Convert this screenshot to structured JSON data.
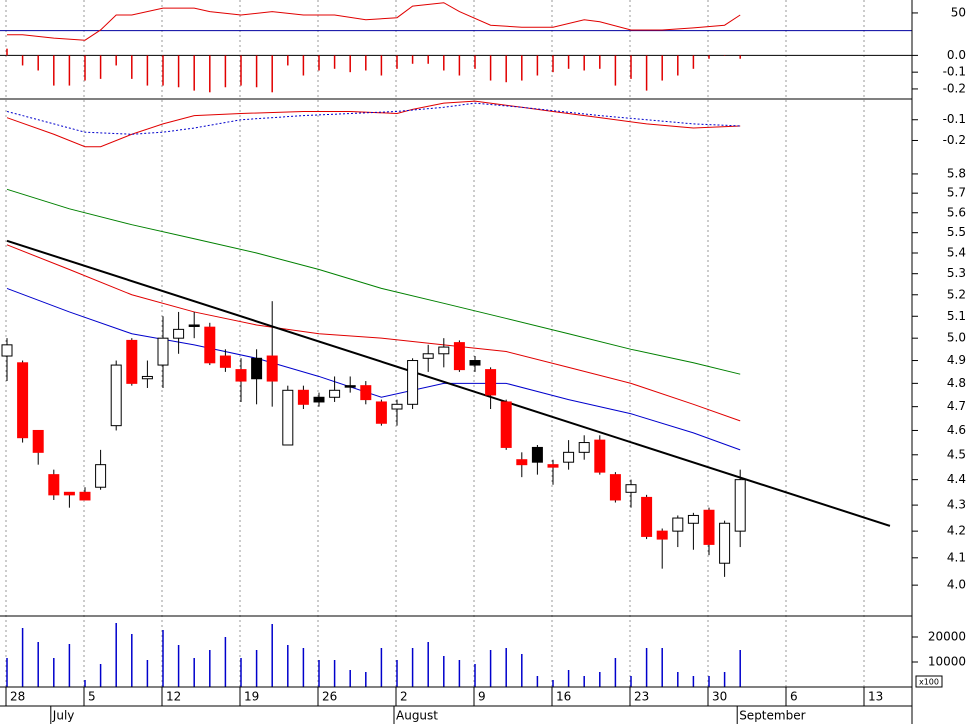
{
  "chart_data": [
    {
      "type": "oscillator",
      "series": [
        {
          "color": "#e00000",
          "x": [
            0,
            1,
            3,
            5,
            6,
            7,
            8,
            10,
            12,
            13,
            15,
            17,
            19,
            21,
            23,
            25,
            26,
            28,
            29,
            31,
            33,
            35,
            37,
            38,
            40,
            42,
            44,
            46,
            47
          ],
          "values": [
            18,
            18,
            13,
            10,
            25,
            47,
            47,
            57,
            57,
            52,
            47,
            52,
            47,
            47,
            40,
            43,
            60,
            65,
            52,
            32,
            29,
            29,
            40,
            37,
            25,
            25,
            28,
            32,
            47
          ]
        }
      ],
      "level": 24,
      "level_color": "#0000a0",
      "ylim": [
        0,
        69
      ],
      "yticks": [
        50
      ]
    },
    {
      "type": "histogram_bars",
      "color": "#e00000",
      "x": [
        0,
        1,
        2,
        3,
        4,
        5,
        6,
        7,
        8,
        9,
        10,
        11,
        12,
        13,
        14,
        15,
        16,
        17,
        18,
        19,
        20,
        21,
        22,
        23,
        24,
        25,
        26,
        27,
        28,
        29,
        30,
        31,
        32,
        33,
        34,
        35,
        36,
        37,
        38,
        39,
        40,
        41,
        42,
        43,
        44,
        45,
        46,
        47
      ],
      "values": [
        0.04,
        -0.06,
        -0.09,
        -0.18,
        -0.18,
        -0.15,
        -0.14,
        -0.06,
        -0.14,
        -0.18,
        -0.18,
        -0.19,
        -0.21,
        -0.22,
        -0.19,
        -0.18,
        -0.19,
        -0.22,
        -0.06,
        -0.12,
        -0.09,
        -0.08,
        -0.1,
        -0.09,
        -0.12,
        -0.08,
        -0.05,
        -0.05,
        -0.09,
        -0.12,
        -0.08,
        -0.15,
        -0.16,
        -0.15,
        -0.12,
        -0.1,
        -0.08,
        -0.09,
        -0.08,
        -0.18,
        -0.14,
        -0.21,
        -0.15,
        -0.12,
        -0.08,
        -0.02,
        0,
        -0.02
      ],
      "ylim": [
        -0.26,
        0.05
      ],
      "yticks": [
        {
          "value": 0,
          "label": "0.0"
        },
        -0.1,
        -0.2
      ]
    },
    {
      "type": "lines",
      "series": [
        {
          "color": "#e00000",
          "dash": false,
          "x": [
            0,
            3,
            5,
            6,
            8,
            10,
            12,
            15,
            19,
            22,
            25,
            26,
            28,
            30,
            33,
            35,
            38,
            41,
            44,
            47
          ],
          "values": [
            -0.09,
            -0.17,
            -0.23,
            -0.23,
            -0.17,
            -0.12,
            -0.08,
            -0.07,
            -0.06,
            -0.06,
            -0.07,
            -0.05,
            -0.02,
            -0.01,
            -0.04,
            -0.06,
            -0.09,
            -0.12,
            -0.14,
            -0.13
          ]
        },
        {
          "color": "#0000cc",
          "dash": true,
          "x": [
            0,
            3,
            5,
            8,
            10,
            12,
            15,
            19,
            22,
            25,
            28,
            30,
            33,
            38,
            41,
            44,
            47
          ],
          "values": [
            -0.06,
            -0.12,
            -0.16,
            -0.17,
            -0.16,
            -0.14,
            -0.1,
            -0.08,
            -0.07,
            -0.06,
            -0.04,
            -0.02,
            -0.04,
            -0.08,
            -0.1,
            -0.12,
            -0.13
          ]
        }
      ],
      "ylim": [
        -0.27,
        0
      ],
      "yticks": [
        -0.1,
        -0.2
      ]
    },
    {
      "type": "candlestick",
      "log_scale": true,
      "x": [
        0,
        1,
        2,
        3,
        4,
        5,
        6,
        7,
        8,
        9,
        10,
        11,
        12,
        13,
        14,
        15,
        16,
        17,
        18,
        19,
        20,
        21,
        22,
        23,
        24,
        25,
        26,
        27,
        28,
        29,
        30,
        31,
        32,
        33,
        34,
        35,
        36,
        37,
        38,
        39,
        40,
        41,
        42,
        43,
        44,
        45,
        46,
        47
      ],
      "open": [
        4.92,
        4.89,
        4.6,
        4.42,
        4.35,
        4.35,
        4.37,
        4.62,
        4.99,
        4.82,
        4.88,
        5.0,
        5.06,
        5.05,
        4.92,
        4.86,
        4.91,
        4.92,
        4.54,
        4.77,
        4.74,
        4.74,
        4.79,
        4.79,
        4.72,
        4.69,
        4.71,
        4.91,
        4.93,
        4.98,
        4.9,
        4.86,
        4.72,
        4.48,
        4.53,
        4.46,
        4.47,
        4.51,
        4.56,
        4.42,
        4.35,
        4.33,
        4.2,
        4.2,
        4.23,
        4.28,
        4.08,
        4.2
      ],
      "high": [
        5.0,
        4.9,
        4.6,
        4.44,
        4.35,
        4.37,
        4.52,
        4.9,
        5.0,
        4.9,
        5.1,
        5.12,
        5.12,
        5.07,
        4.95,
        4.91,
        4.95,
        5.17,
        4.79,
        4.79,
        4.76,
        4.83,
        4.83,
        4.81,
        4.73,
        4.73,
        4.91,
        4.97,
        5.0,
        4.99,
        4.92,
        4.87,
        4.73,
        4.51,
        4.54,
        4.48,
        4.56,
        4.58,
        4.58,
        4.43,
        4.4,
        4.34,
        4.21,
        4.26,
        4.27,
        4.29,
        4.24,
        4.44
      ],
      "low": [
        4.81,
        4.55,
        4.46,
        4.32,
        4.29,
        4.32,
        4.36,
        4.6,
        4.79,
        4.78,
        4.78,
        4.93,
        5.0,
        4.88,
        4.85,
        4.72,
        4.71,
        4.7,
        4.54,
        4.69,
        4.7,
        4.72,
        4.76,
        4.71,
        4.62,
        4.62,
        4.69,
        4.85,
        4.87,
        4.85,
        4.85,
        4.69,
        4.52,
        4.41,
        4.42,
        4.38,
        4.44,
        4.48,
        4.42,
        4.31,
        4.29,
        4.17,
        4.06,
        4.14,
        4.13,
        4.11,
        4.03,
        4.14
      ],
      "close": [
        4.97,
        4.57,
        4.51,
        4.34,
        4.34,
        4.32,
        4.46,
        4.88,
        4.8,
        4.83,
        5.0,
        5.04,
        5.06,
        4.89,
        4.87,
        4.81,
        4.82,
        4.81,
        4.77,
        4.71,
        4.72,
        4.77,
        4.79,
        4.73,
        4.63,
        4.71,
        4.9,
        4.93,
        4.96,
        4.86,
        4.88,
        4.75,
        4.53,
        4.46,
        4.47,
        4.45,
        4.51,
        4.55,
        4.43,
        4.32,
        4.38,
        4.18,
        4.17,
        4.25,
        4.26,
        4.15,
        4.23,
        4.4
      ],
      "colors": [
        "#ffffff",
        "#ff0000",
        "#ff0000",
        "#ff0000",
        "#ff0000",
        "#ff0000",
        "#ffffff",
        "#ffffff",
        "#ff0000",
        "#ffffff",
        "#ffffff",
        "#ffffff",
        "#000000",
        "#ff0000",
        "#ff0000",
        "#ff0000",
        "#000000",
        "#ff0000",
        "#ffffff",
        "#ff0000",
        "#000000",
        "#ffffff",
        "#000000",
        "#ff0000",
        "#ff0000",
        "#ffffff",
        "#ffffff",
        "#ffffff",
        "#ffffff",
        "#ff0000",
        "#000000",
        "#ff0000",
        "#ff0000",
        "#ff0000",
        "#000000",
        "#ff0000",
        "#ffffff",
        "#ffffff",
        "#ff0000",
        "#ff0000",
        "#ffffff",
        "#ff0000",
        "#ff0000",
        "#ffffff",
        "#ffffff",
        "#ff0000",
        "#ffffff",
        "#ffffff"
      ],
      "series": [
        {
          "color": "#008000",
          "width": 1,
          "x": [
            0,
            4,
            8,
            12,
            16,
            20,
            24,
            28,
            32,
            36,
            40,
            44,
            47
          ],
          "values": [
            5.72,
            5.62,
            5.54,
            5.47,
            5.4,
            5.32,
            5.23,
            5.16,
            5.09,
            5.02,
            4.95,
            4.89,
            4.84
          ]
        },
        {
          "color": "#e00000",
          "width": 1,
          "x": [
            0,
            4,
            8,
            12,
            16,
            20,
            24,
            28,
            32,
            36,
            40,
            44,
            47
          ],
          "values": [
            5.44,
            5.32,
            5.2,
            5.12,
            5.06,
            5.02,
            5.0,
            4.97,
            4.94,
            4.87,
            4.8,
            4.71,
            4.64
          ]
        },
        {
          "color": "#0000cc",
          "width": 1,
          "x": [
            0,
            4,
            8,
            12,
            16,
            20,
            24,
            28,
            32,
            36,
            40,
            44,
            47
          ],
          "values": [
            5.23,
            5.12,
            5.02,
            4.97,
            4.91,
            4.83,
            4.74,
            4.8,
            4.8,
            4.73,
            4.67,
            4.59,
            4.52
          ]
        },
        {
          "color": "#000000",
          "width": 2,
          "x": [
            0,
            56.6
          ],
          "values": [
            5.46,
            4.22
          ]
        }
      ],
      "ylim": [
        3.89,
        5.9
      ],
      "yticks": [
        {
          "value": 4,
          "label": "4.0"
        },
        4.1,
        4.2,
        4.3,
        4.4,
        4.5,
        4.6,
        4.7,
        4.8,
        4.9,
        {
          "value": 5,
          "label": "5.0"
        },
        5.1,
        5.2,
        5.3,
        5.4,
        5.5,
        5.6,
        5.7,
        5.8
      ]
    },
    {
      "type": "volume",
      "color": "#0000cc",
      "unit_label": "x100",
      "x": [
        0,
        1,
        2,
        3,
        4,
        5,
        6,
        7,
        8,
        9,
        10,
        11,
        12,
        13,
        14,
        15,
        16,
        17,
        18,
        19,
        20,
        21,
        22,
        23,
        24,
        25,
        26,
        27,
        28,
        29,
        30,
        31,
        32,
        33,
        34,
        35,
        36,
        37,
        38,
        39,
        40,
        41,
        42,
        43,
        44,
        45,
        46,
        47
      ],
      "values": [
        11600,
        23600,
        18000,
        11600,
        17200,
        2800,
        9200,
        25600,
        21200,
        10800,
        22800,
        16800,
        11600,
        14800,
        20000,
        11600,
        14800,
        25200,
        16800,
        15600,
        10800,
        10800,
        6800,
        6000,
        15600,
        10800,
        15600,
        18000,
        12400,
        10800,
        9200,
        14800,
        15600,
        13200,
        4400,
        2800,
        6800,
        4400,
        6000,
        11600,
        4400,
        15600,
        15600,
        6000,
        4400,
        4400,
        6000,
        14800
      ],
      "ylim": [
        0,
        28400
      ],
      "yticks": [
        10000,
        20000
      ],
      "xticks": [
        {
          "value": 0,
          "label": "28"
        },
        {
          "value": 5,
          "label": "5"
        },
        {
          "value": 10,
          "label": "12"
        },
        {
          "value": 15,
          "label": "19"
        },
        {
          "value": 20,
          "label": "26"
        },
        {
          "value": 25,
          "label": "2"
        },
        {
          "value": 30,
          "label": "9"
        },
        {
          "value": 35,
          "label": "16"
        },
        {
          "value": 40,
          "label": "23"
        },
        {
          "value": 45,
          "label": "30"
        },
        {
          "value": 50,
          "label": "6"
        },
        {
          "value": 55,
          "label": "13"
        }
      ],
      "month_labels": [
        {
          "value": 3,
          "label": "July"
        },
        {
          "value": 25,
          "label": "August"
        },
        {
          "value": 47,
          "label": "September"
        }
      ]
    }
  ]
}
